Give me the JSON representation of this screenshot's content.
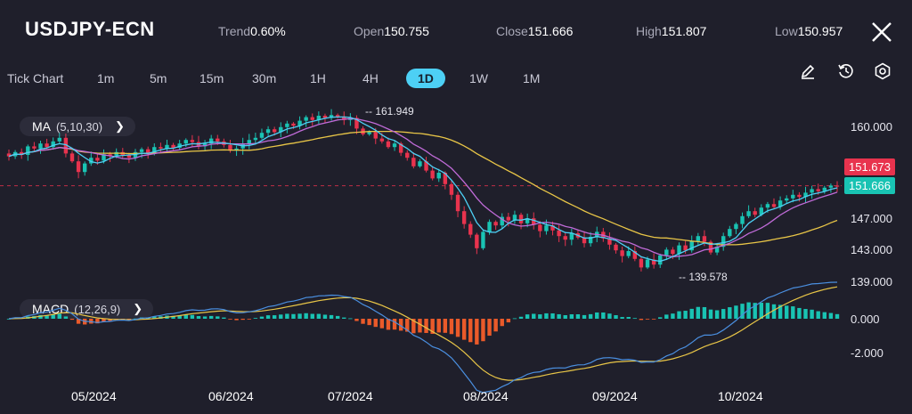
{
  "header": {
    "symbol": "USDJPY-ECN",
    "stats": [
      {
        "label": "Trend",
        "value": "0.60%"
      },
      {
        "label": "Open",
        "value": "150.755"
      },
      {
        "label": "Close",
        "value": "151.666"
      },
      {
        "label": "High",
        "value": "151.807"
      },
      {
        "label": "Low",
        "value": "150.957"
      }
    ],
    "close_icon": "close-icon"
  },
  "timeframes": {
    "items": [
      "Tick Chart",
      "1m",
      "5m",
      "15m",
      "30m",
      "1H",
      "4H",
      "1D",
      "1W",
      "1M"
    ],
    "active": "1D"
  },
  "tools": [
    "pencil-icon",
    "clock-reset-icon",
    "settings-icon"
  ],
  "indicators": {
    "ma": {
      "name": "MA",
      "params": "(5,10,30)"
    },
    "macd": {
      "name": "MACD",
      "params": "(12,26,9)"
    }
  },
  "price_axis": [
    "160.000",
    "147.000",
    "143.000",
    "139.000"
  ],
  "price_tags": {
    "last": {
      "value": "151.673",
      "color": "#e8334e"
    },
    "current": {
      "value": "151.666",
      "color": "#19c3b3"
    }
  },
  "annotations": {
    "high": "161.949",
    "low": "139.578"
  },
  "macd_axis": [
    "0.000",
    "-2.000"
  ],
  "dates": [
    "05/2024",
    "06/2024",
    "07/2024",
    "08/2024",
    "09/2024",
    "10/2024"
  ],
  "colors": {
    "background": "#1f1f2b",
    "up": "#19c3b3",
    "down": "#e8334e",
    "ma5": "#4dd0f5",
    "ma10": "#c06bd8",
    "ma30": "#e8c547",
    "macd_dif": "#4a8fe0",
    "macd_dea": "#e8c547"
  },
  "chart_data": {
    "type": "candlestick",
    "start_value": 156.2,
    "closes": [
      155.8,
      156.4,
      156.0,
      157.2,
      156.9,
      157.6,
      157.1,
      157.9,
      158.4,
      156.2,
      155.1,
      153.6,
      154.8,
      155.6,
      155.2,
      156.1,
      155.9,
      156.4,
      156.0,
      155.6,
      156.4,
      156.8,
      156.3,
      157.1,
      156.9,
      157.4,
      157.0,
      157.6,
      158.1,
      157.8,
      157.2,
      157.6,
      158.3,
      157.9,
      157.4,
      156.6,
      156.9,
      157.6,
      158.1,
      158.4,
      159.1,
      159.6,
      159.2,
      159.9,
      160.4,
      160.1,
      160.8,
      161.3,
      160.9,
      161.5,
      161.2,
      161.6,
      161.4,
      160.9,
      161.2,
      159.7,
      158.9,
      159.2,
      158.3,
      157.9,
      157.1,
      157.6,
      156.3,
      155.6,
      154.4,
      155.1,
      153.8,
      152.7,
      153.5,
      151.9,
      150.4,
      148.1,
      146.3,
      144.8,
      142.9,
      145.2,
      146.6,
      146.1,
      147.3,
      146.8,
      147.6,
      146.4,
      147.1,
      146.2,
      145.3,
      146.1,
      145.4,
      144.6,
      144.1,
      145.0,
      144.4,
      143.6,
      144.5,
      145.2,
      144.3,
      143.4,
      142.6,
      141.8,
      142.5,
      141.4,
      140.2,
      141.3,
      140.6,
      141.9,
      142.7,
      142.1,
      143.3,
      142.6,
      143.9,
      144.6,
      143.8,
      142.3,
      143.1,
      144.6,
      145.6,
      146.3,
      147.4,
      148.1,
      147.6,
      148.6,
      149.1,
      148.7,
      149.6,
      149.9,
      150.4,
      150.1,
      150.7,
      151.2,
      150.9,
      151.4,
      151.7,
      151.666
    ],
    "price_axis_ticks": [
      160,
      147,
      143,
      139
    ],
    "high": 161.949,
    "low": 139.578,
    "last": 151.673,
    "current": 151.666,
    "moving_averages": [
      {
        "name": "MA5",
        "period": 5
      },
      {
        "name": "MA10",
        "period": 10
      },
      {
        "name": "MA30",
        "period": 30
      }
    ],
    "macd": {
      "fast": 12,
      "slow": 26,
      "signal": 9,
      "axis_ticks": [
        0,
        -2
      ]
    },
    "x_labels": [
      "05/2024",
      "06/2024",
      "07/2024",
      "08/2024",
      "09/2024",
      "10/2024"
    ],
    "series_colors": {
      "up": "#19c3b3",
      "down": "#e8334e"
    }
  }
}
